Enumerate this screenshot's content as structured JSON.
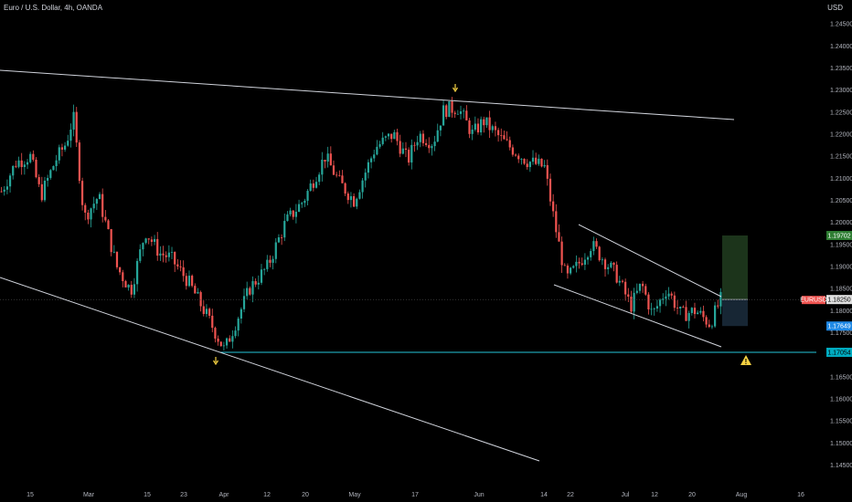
{
  "header": {
    "title": "Euro / U.S. Dollar, 4h, OANDA",
    "currency": "USD"
  },
  "colors": {
    "background": "#000000",
    "bull": "#26a69a",
    "bear": "#ef5350",
    "trendline": "#d1d4dc",
    "support": "#26c6da",
    "target_zone": "#1f3a1e",
    "stop_zone": "#1a2a3a",
    "arrow": "#f5d142",
    "warning": "#f5d142"
  },
  "chart_data": {
    "type": "candlestick",
    "symbol": "EURUSD",
    "timeframe": "4h",
    "source": "OANDA",
    "ylim": [
      1.1395,
      1.2475
    ],
    "y_ticks": [
      "1.24500",
      "1.24000",
      "1.23500",
      "1.23000",
      "1.22500",
      "1.22000",
      "1.21500",
      "1.21000",
      "1.20500",
      "1.20000",
      "1.19500",
      "1.19000",
      "1.18500",
      "1.18000",
      "1.17500",
      "1.17000",
      "1.16500",
      "1.16000",
      "1.15500",
      "1.15000",
      "1.14500"
    ],
    "x_ticks": [
      "15",
      "Mar",
      "15",
      "23",
      "Apr",
      "12",
      "20",
      "May",
      "17",
      "Jun",
      "14",
      "22",
      "Jul",
      "12",
      "20",
      "Aug",
      "16"
    ],
    "price_path": [
      [
        0,
        1.207
      ],
      [
        0.02,
        1.2135
      ],
      [
        0.04,
        1.215
      ],
      [
        0.055,
        1.206
      ],
      [
        0.075,
        1.214
      ],
      [
        0.09,
        1.218
      ],
      [
        0.1,
        1.224
      ],
      [
        0.115,
        1.201
      ],
      [
        0.135,
        1.206
      ],
      [
        0.16,
        1.19
      ],
      [
        0.18,
        1.1845
      ],
      [
        0.2,
        1.198
      ],
      [
        0.22,
        1.193
      ],
      [
        0.235,
        1.192
      ],
      [
        0.26,
        1.1865
      ],
      [
        0.285,
        1.179
      ],
      [
        0.31,
        1.171
      ],
      [
        0.33,
        1.179
      ],
      [
        0.345,
        1.185
      ],
      [
        0.37,
        1.19
      ],
      [
        0.395,
        1.2
      ],
      [
        0.42,
        1.205
      ],
      [
        0.45,
        1.215
      ],
      [
        0.47,
        1.209
      ],
      [
        0.49,
        1.205
      ],
      [
        0.52,
        1.217
      ],
      [
        0.545,
        1.22
      ],
      [
        0.565,
        1.214
      ],
      [
        0.58,
        1.22
      ],
      [
        0.6,
        1.218
      ],
      [
        0.615,
        1.2255
      ],
      [
        0.635,
        1.226
      ],
      [
        0.655,
        1.22
      ],
      [
        0.67,
        1.223
      ],
      [
        0.7,
        1.218
      ],
      [
        0.73,
        1.214
      ],
      [
        0.755,
        1.2125
      ],
      [
        0.77,
        1.199
      ],
      [
        0.785,
        1.187
      ],
      [
        0.8,
        1.19
      ],
      [
        0.82,
        1.195
      ],
      [
        0.835,
        1.192
      ],
      [
        0.855,
        1.188
      ],
      [
        0.875,
        1.181
      ],
      [
        0.89,
        1.186
      ],
      [
        0.905,
        1.179
      ],
      [
        0.925,
        1.185
      ],
      [
        0.945,
        1.179
      ],
      [
        0.965,
        1.18
      ],
      [
        0.985,
        1.177
      ],
      [
        1,
        1.1825
      ]
    ],
    "price_tags": [
      {
        "label": "1.19702",
        "value": 1.19702,
        "kind": "target"
      },
      {
        "label": "1.18250",
        "value": 1.1825,
        "kind": "current"
      },
      {
        "label": "1.17649",
        "value": 1.17649,
        "kind": "stop"
      },
      {
        "label": "1.17054",
        "value": 1.17054,
        "kind": "support"
      }
    ],
    "symbol_tag": "EURUSD",
    "support_level": 1.17054,
    "trendlines": [
      {
        "name": "upper-resistance",
        "from": [
          "start",
          1.2352
        ],
        "to": [
          "late Jul",
          1.2225
        ]
      },
      {
        "name": "lower-support-diagonal",
        "from": [
          "start",
          1.188
        ],
        "to": [
          "Jul",
          1.146
        ]
      },
      {
        "name": "channel-top",
        "from": [
          "Jun 22",
          1.199
        ],
        "to": [
          "late Jul",
          1.183
        ]
      },
      {
        "name": "channel-bottom",
        "from": [
          "Jun 22",
          1.186
        ],
        "to": [
          "late Jul",
          1.1725
        ]
      }
    ],
    "position": {
      "entry": 1.1825,
      "target": 1.19702,
      "stop": 1.17649
    },
    "markers": [
      "arrow-down at Apr low",
      "arrow-down at May/Jun high",
      "warning icon near Aug"
    ]
  }
}
